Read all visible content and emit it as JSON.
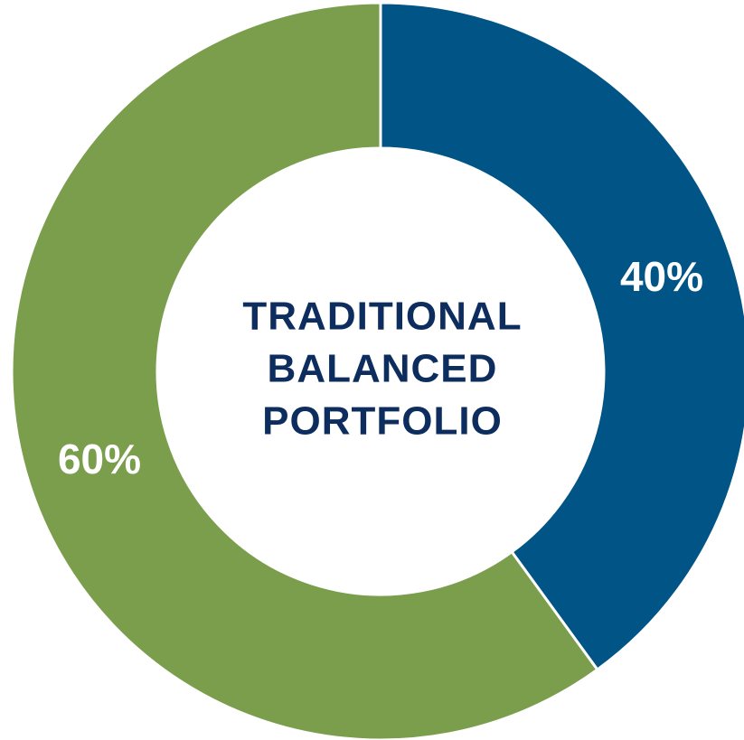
{
  "chart_data": {
    "type": "donut",
    "center_label": [
      "TRADITIONAL",
      "BALANCED",
      "PORTFOLIO"
    ],
    "values": [
      40,
      60
    ],
    "value_labels": [
      "40%",
      "60%"
    ],
    "colors": [
      "#005486",
      "#7a9e4b"
    ]
  }
}
